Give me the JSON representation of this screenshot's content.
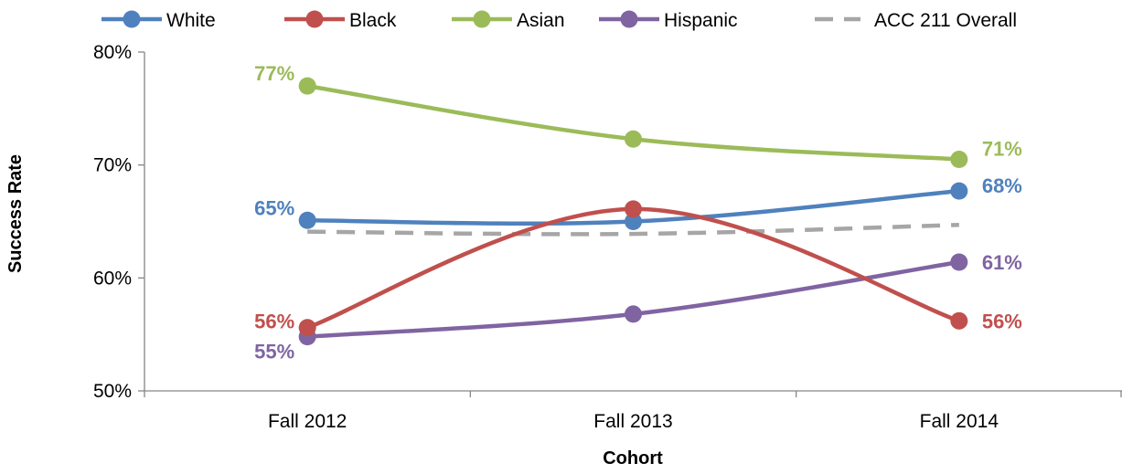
{
  "chart_data": {
    "type": "line",
    "categories": [
      "Fall 2012",
      "Fall 2013",
      "Fall 2014"
    ],
    "series": [
      {
        "name": "White",
        "values": [
          65.1,
          65.0,
          67.7
        ],
        "color": "#4f81bd",
        "style": "solid",
        "markers": true,
        "labels": [
          "65%",
          "",
          "68%"
        ]
      },
      {
        "name": "Black",
        "values": [
          55.6,
          66.1,
          56.2
        ],
        "color": "#c0504d",
        "style": "solid",
        "markers": true,
        "labels": [
          "56%",
          "",
          "56%"
        ]
      },
      {
        "name": "Asian",
        "values": [
          77.0,
          72.3,
          70.5
        ],
        "color": "#9bbb59",
        "style": "solid",
        "markers": true,
        "labels": [
          "77%",
          "",
          "71%"
        ]
      },
      {
        "name": "Hispanic",
        "values": [
          54.8,
          56.8,
          61.4
        ],
        "color": "#8064a2",
        "style": "solid",
        "markers": true,
        "labels": [
          "55%",
          "",
          "61%"
        ]
      },
      {
        "name": "ACC 211 Overall",
        "values": [
          64.1,
          63.9,
          64.7
        ],
        "color": "#a6a6a6",
        "style": "dashed",
        "markers": false,
        "labels": [
          "",
          "",
          ""
        ]
      }
    ],
    "y_ticks": [
      "50%",
      "60%",
      "70%",
      "80%"
    ],
    "ylim": [
      50,
      80
    ],
    "xlabel": "Cohort",
    "ylabel": "Success Rate",
    "legend_position": "top",
    "grid": false
  }
}
